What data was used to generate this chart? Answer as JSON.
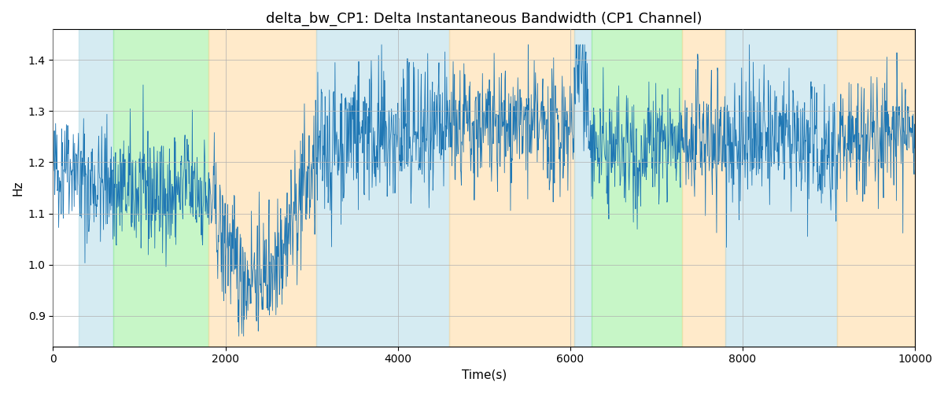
{
  "title": "delta_bw_CP1: Delta Instantaneous Bandwidth (CP1 Channel)",
  "xlabel": "Time(s)",
  "ylabel": "Hz",
  "xlim": [
    0,
    10000
  ],
  "ylim": [
    0.84,
    1.46
  ],
  "line_color": "#1f77b4",
  "line_width": 0.6,
  "background_color": "#ffffff",
  "grid_color": "#b0b0b0",
  "bands": [
    {
      "xmin": 300,
      "xmax": 700,
      "color": "#add8e6",
      "alpha": 0.5
    },
    {
      "xmin": 700,
      "xmax": 1800,
      "color": "#90ee90",
      "alpha": 0.5
    },
    {
      "xmin": 1800,
      "xmax": 3050,
      "color": "#ffd9a0",
      "alpha": 0.55
    },
    {
      "xmin": 3050,
      "xmax": 4600,
      "color": "#add8e6",
      "alpha": 0.5
    },
    {
      "xmin": 4600,
      "xmax": 6050,
      "color": "#ffd9a0",
      "alpha": 0.55
    },
    {
      "xmin": 6050,
      "xmax": 6250,
      "color": "#add8e6",
      "alpha": 0.5
    },
    {
      "xmin": 6250,
      "xmax": 7300,
      "color": "#90ee90",
      "alpha": 0.5
    },
    {
      "xmin": 7300,
      "xmax": 7800,
      "color": "#ffd9a0",
      "alpha": 0.55
    },
    {
      "xmin": 7800,
      "xmax": 9100,
      "color": "#add8e6",
      "alpha": 0.5
    },
    {
      "xmin": 9100,
      "xmax": 10000,
      "color": "#ffd9a0",
      "alpha": 0.55
    }
  ],
  "seed": 42,
  "n_points": 2000
}
